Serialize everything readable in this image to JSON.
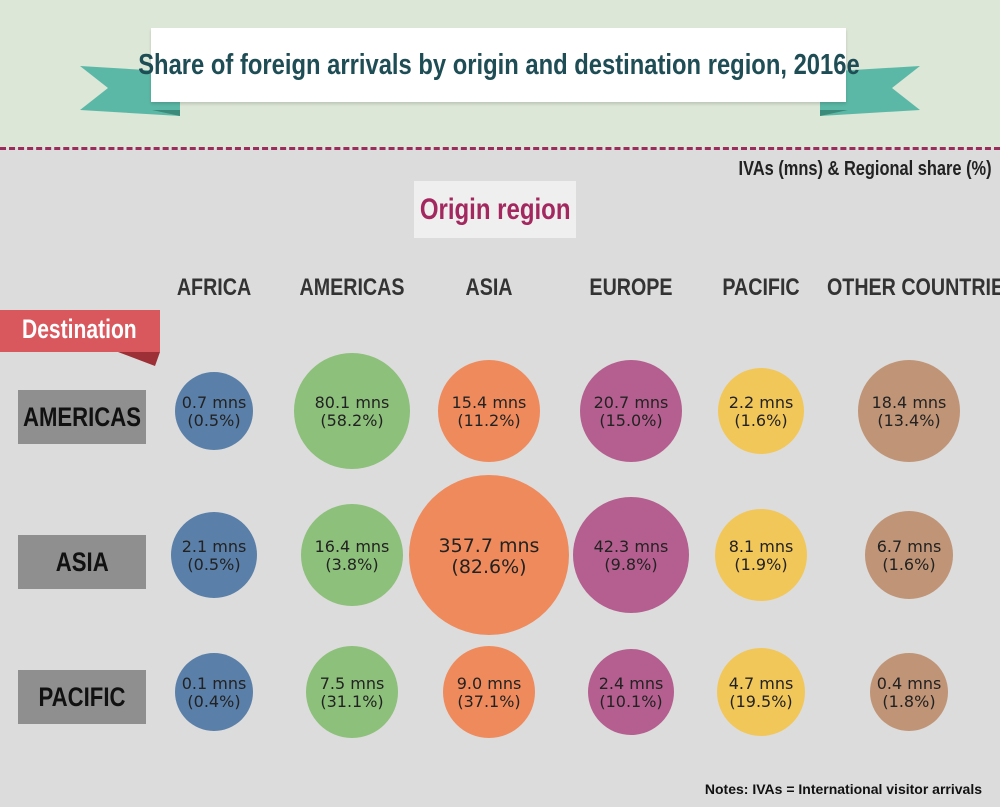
{
  "title": "Share of foreign arrivals by origin and destination region, 2016e",
  "unit_note": "IVAs (mns) & Regional share (%)",
  "origin_label": "Origin region",
  "destination_label": "Destination",
  "footnote": "Notes: IVAs = International visitor arrivals",
  "colors": {
    "AFRICA": "#5a7fa8",
    "AMERICAS": "#8dc07b",
    "ASIA": "#ef8a5c",
    "EUROPE": "#b45f8f",
    "PACIFIC": "#f2c75a",
    "OTHER COUNTRIES": "#c09476"
  },
  "chart_data": {
    "type": "bubble-matrix",
    "title": "Share of foreign arrivals by origin and destination region, 2016e",
    "columns_label": "Origin region",
    "rows_label": "Destination",
    "unit": "IVAs (mns) & Regional share (%)",
    "columns": [
      "AFRICA",
      "AMERICAS",
      "ASIA",
      "EUROPE",
      "PACIFIC",
      "OTHER COUNTRIES"
    ],
    "rows": [
      "AMERICAS",
      "ASIA",
      "PACIFIC"
    ],
    "cells": [
      [
        {
          "value": 0.7,
          "value_label": "0.7 mns",
          "share_label": "(0.5%)"
        },
        {
          "value": 80.1,
          "value_label": "80.1 mns",
          "share_label": "(58.2%)"
        },
        {
          "value": 15.4,
          "value_label": "15.4 mns",
          "share_label": "(11.2%)"
        },
        {
          "value": 20.7,
          "value_label": "20.7 mns",
          "share_label": "(15.0%)"
        },
        {
          "value": 2.2,
          "value_label": "2.2 mns",
          "share_label": "(1.6%)"
        },
        {
          "value": 18.4,
          "value_label": "18.4 mns",
          "share_label": "(13.4%)"
        }
      ],
      [
        {
          "value": 2.1,
          "value_label": "2.1 mns",
          "share_label": "(0.5%)"
        },
        {
          "value": 16.4,
          "value_label": "16.4 mns",
          "share_label": "(3.8%)"
        },
        {
          "value": 357.7,
          "value_label": "357.7 mns",
          "share_label": "(82.6%)"
        },
        {
          "value": 42.3,
          "value_label": "42.3 mns",
          "share_label": "(9.8%)"
        },
        {
          "value": 8.1,
          "value_label": "8.1 mns",
          "share_label": "(1.9%)"
        },
        {
          "value": 6.7,
          "value_label": "6.7 mns",
          "share_label": "(1.6%)"
        }
      ],
      [
        {
          "value": 0.1,
          "value_label": "0.1 mns",
          "share_label": "(0.4%)"
        },
        {
          "value": 7.5,
          "value_label": "7.5 mns",
          "share_label": "(31.1%)"
        },
        {
          "value": 9.0,
          "value_label": "9.0 mns",
          "share_label": "(37.1%)"
        },
        {
          "value": 2.4,
          "value_label": "2.4 mns",
          "share_label": "(10.1%)"
        },
        {
          "value": 4.7,
          "value_label": "4.7 mns",
          "share_label": "(19.5%)"
        },
        {
          "value": 0.4,
          "value_label": "0.4 mns",
          "share_label": "(1.8%)"
        }
      ]
    ]
  }
}
